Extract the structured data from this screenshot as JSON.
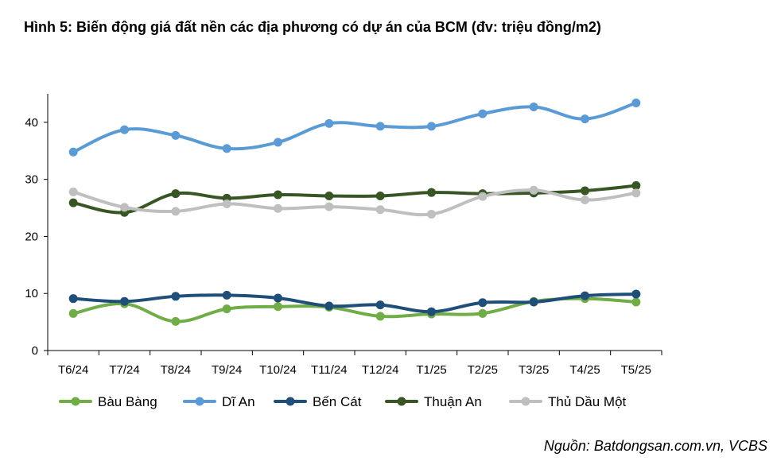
{
  "title": "Hình 5: Biến động giá đất nền các địa phương có dự án của BCM (đv: triệu đồng/m2)",
  "source": "Nguồn: Batdongsan.com.vn, VCBS",
  "chart_data": {
    "type": "line",
    "title": "Hình 5: Biến động giá đất nền các địa phương có dự án của BCM (đv: triệu đồng/m2)",
    "xlabel": "",
    "ylabel": "",
    "categories": [
      "T6/24",
      "T7/24",
      "T8/24",
      "T9/24",
      "T10/24",
      "T11/24",
      "T12/24",
      "T1/25",
      "T2/25",
      "T3/25",
      "T4/25",
      "T5/25"
    ],
    "ylim": [
      0,
      45
    ],
    "yticks": [
      0,
      10,
      20,
      30,
      40
    ],
    "grid": false,
    "legend_position": "bottom",
    "series": [
      {
        "name": "Bàu Bàng",
        "color": "#70AD47",
        "values": [
          6.5,
          8.2,
          5.1,
          7.3,
          7.7,
          7.6,
          6.0,
          6.4,
          6.5,
          8.6,
          9.1,
          8.5
        ]
      },
      {
        "name": "Dĩ An",
        "color": "#5B9BD5",
        "values": [
          34.8,
          38.7,
          37.7,
          35.4,
          36.5,
          39.8,
          39.3,
          39.3,
          41.5,
          42.7,
          40.6,
          43.4
        ]
      },
      {
        "name": "Bến Cát",
        "color": "#1F4E79",
        "values": [
          9.1,
          8.6,
          9.5,
          9.7,
          9.2,
          7.8,
          8.0,
          6.8,
          8.4,
          8.5,
          9.6,
          9.9
        ]
      },
      {
        "name": "Thuận An",
        "color": "#375623",
        "values": [
          25.9,
          24.2,
          27.5,
          26.7,
          27.3,
          27.1,
          27.1,
          27.7,
          27.5,
          27.6,
          28.0,
          28.9
        ]
      },
      {
        "name": "Thủ Dầu Một",
        "color": "#BFBFBF",
        "values": [
          27.8,
          25.1,
          24.4,
          25.7,
          24.9,
          25.2,
          24.7,
          23.9,
          27.0,
          28.1,
          26.4,
          27.6
        ]
      }
    ]
  }
}
